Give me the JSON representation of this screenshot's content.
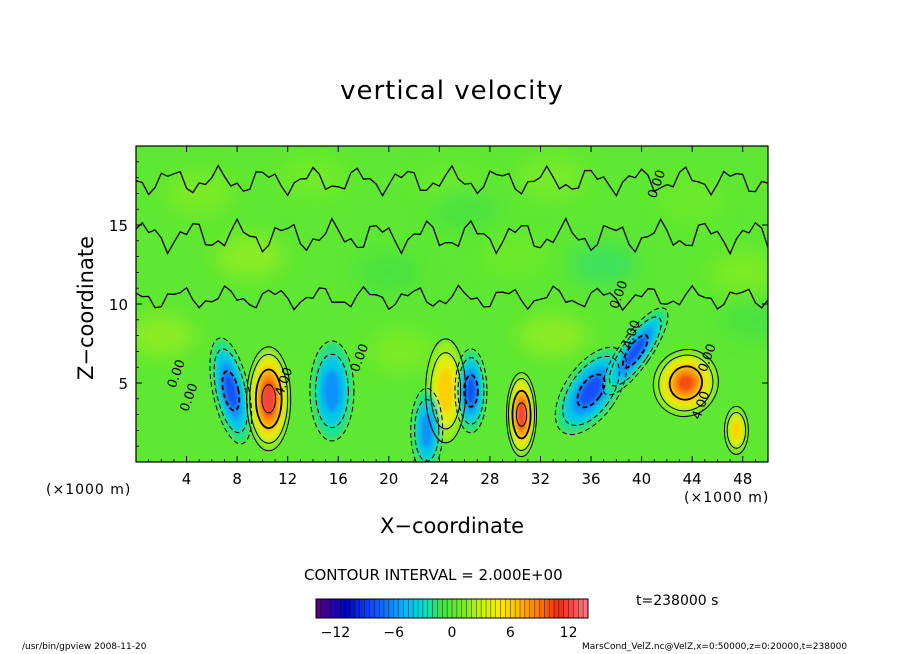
{
  "figure": {
    "title": "vertical velocity",
    "xlabel": "X−coordinate",
    "ylabel": "Z−coordinate",
    "x_unit_left": "(×1000 m)",
    "x_unit_right": "(×1000 m)",
    "contour_interval": "CONTOUR INTERVAL = 2.000E+00",
    "time_label": "t=238000 s",
    "footer_left": "/usr/bin/gpview   2008-11-20",
    "footer_right": "MarsCond_VelZ.nc@VelZ,x=0:50000,z=0:20000,t=238000"
  },
  "chart_data": {
    "type": "heatmap",
    "title": "vertical velocity",
    "xlabel": "X−coordinate",
    "ylabel": "Z−coordinate",
    "x_unit": "(×1000 m)",
    "xlim": [
      0,
      50
    ],
    "ylim": [
      0,
      20
    ],
    "x_ticks": [
      4,
      8,
      12,
      16,
      20,
      24,
      28,
      32,
      36,
      40,
      44,
      48
    ],
    "y_ticks": [
      5,
      10,
      15
    ],
    "contour_interval": 2.0,
    "contour_labels": [
      {
        "text": "0.00",
        "x": 3.5,
        "z": 5.5
      },
      {
        "text": "0.00",
        "x": 4.5,
        "z": 4.0
      },
      {
        "text": "4.00",
        "x": 12.0,
        "z": 5.0
      },
      {
        "text": "0.00",
        "x": 18.0,
        "z": 6.5
      },
      {
        "text": "0.00",
        "x": 38.5,
        "z": 10.5
      },
      {
        "text": "4.00",
        "x": 39.5,
        "z": 8.0
      },
      {
        "text": "0.00",
        "x": 41.5,
        "z": 17.5
      },
      {
        "text": "0.00",
        "x": 45.5,
        "z": 6.5
      },
      {
        "text": "4.00",
        "x": 45.0,
        "z": 3.5
      }
    ],
    "features": [
      {
        "sign": "down",
        "x": 7.5,
        "z": 4.5,
        "peak": -8
      },
      {
        "sign": "up",
        "x": 10.5,
        "z": 4.0,
        "peak": 12
      },
      {
        "sign": "down",
        "x": 15.5,
        "z": 4.5,
        "peak": -6
      },
      {
        "sign": "up",
        "x": 24.5,
        "z": 4.5,
        "peak": 6
      },
      {
        "sign": "down",
        "x": 26.5,
        "z": 4.5,
        "peak": -8
      },
      {
        "sign": "down",
        "x": 23.0,
        "z": 2.0,
        "peak": -5
      },
      {
        "sign": "up",
        "x": 30.5,
        "z": 3.0,
        "peak": 12
      },
      {
        "sign": "down",
        "x": 36.0,
        "z": 4.5,
        "peak": -8
      },
      {
        "sign": "down",
        "x": 39.5,
        "z": 7.0,
        "peak": -8
      },
      {
        "sign": "up",
        "x": 43.5,
        "z": 5.0,
        "peak": 10
      },
      {
        "sign": "up",
        "x": 47.5,
        "z": 2.0,
        "peak": 6
      }
    ],
    "colorbar": {
      "ticks": [
        -12,
        -6,
        0,
        6,
        12
      ],
      "range": [
        -14,
        14
      ],
      "levels": 56,
      "colormap": "rainbow"
    }
  }
}
